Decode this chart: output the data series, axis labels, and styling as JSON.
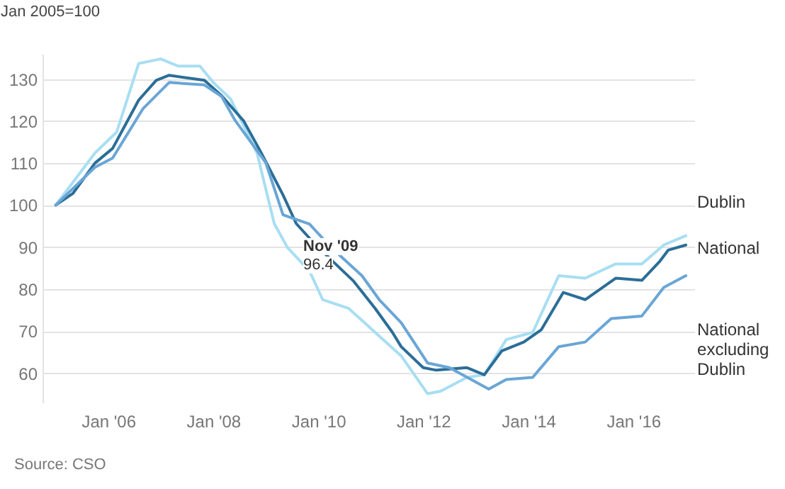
{
  "chart_data": {
    "type": "line",
    "ylabel": "Jan 2005=100",
    "xlim": [
      "2004-10",
      "2017-03"
    ],
    "ylim": [
      53,
      136
    ],
    "xticks": [
      {
        "value": "2006-01",
        "label": "Jan '06"
      },
      {
        "value": "2008-01",
        "label": "Jan '08"
      },
      {
        "value": "2010-01",
        "label": "Jan '10"
      },
      {
        "value": "2012-01",
        "label": "Jan '12"
      },
      {
        "value": "2014-01",
        "label": "Jan '14"
      },
      {
        "value": "2016-01",
        "label": "Jan '16"
      }
    ],
    "yticks": [
      60,
      70,
      80,
      90,
      100,
      110,
      120,
      130
    ],
    "grid": "y",
    "legend": false,
    "annotations": [
      "Nov '09",
      "96.4",
      "Source: CSO"
    ],
    "series": [
      {
        "name": "Dublin",
        "color": "#a8def2",
        "x": [
          "2005-01",
          "2005-10",
          "2006-03",
          "2006-08",
          "2007-01",
          "2007-05",
          "2007-10",
          "2008-01",
          "2008-05",
          "2008-11",
          "2009-03",
          "2009-06",
          "2009-11",
          "2010-02",
          "2010-08",
          "2011-02",
          "2011-08",
          "2012-02",
          "2012-05",
          "2012-11",
          "2013-03",
          "2013-08",
          "2014-02",
          "2014-08",
          "2015-02",
          "2015-09",
          "2016-03",
          "2016-08",
          "2017-01"
        ],
        "values": [
          100,
          112.4,
          117.4,
          133.7,
          134.8,
          133.1,
          133.1,
          129.2,
          125.3,
          112.4,
          95.6,
          89.9,
          84.3,
          77.5,
          75.4,
          69.7,
          64.1,
          55.1,
          55.7,
          59,
          59.6,
          68,
          69.7,
          83.2,
          82.6,
          86,
          86,
          90.5,
          92.7
        ]
      },
      {
        "name": "National",
        "color": "#2b6e97",
        "x": [
          "2005-01",
          "2005-05",
          "2005-10",
          "2006-02",
          "2006-08",
          "2006-12",
          "2007-03",
          "2007-11",
          "2008-03",
          "2008-08",
          "2008-12",
          "2009-05",
          "2009-08",
          "2009-12",
          "2010-05",
          "2010-09",
          "2011-02",
          "2011-06",
          "2011-08",
          "2012-01",
          "2012-04",
          "2012-11",
          "2013-03",
          "2013-07",
          "2013-12",
          "2014-04",
          "2014-09",
          "2015-02",
          "2015-09",
          "2016-03",
          "2016-07",
          "2016-09",
          "2017-01"
        ],
        "values": [
          100,
          102.8,
          110,
          113.5,
          125,
          129.7,
          130.9,
          129.7,
          126,
          120,
          112.4,
          102.4,
          95.6,
          91,
          86,
          82,
          75.4,
          69.7,
          66.3,
          61.3,
          60.7,
          61.3,
          59.6,
          65.3,
          67.4,
          70.3,
          79.2,
          77.5,
          82.6,
          82.1,
          86.5,
          89.3,
          90.5
        ]
      },
      {
        "name": "National excluding Dublin",
        "color": "#6aa6d6",
        "x": [
          "2005-01",
          "2005-10",
          "2006-02",
          "2006-09",
          "2007-03",
          "2007-11",
          "2008-03",
          "2008-06",
          "2009-01",
          "2009-05",
          "2009-11",
          "2010-04",
          "2010-11",
          "2011-03",
          "2011-08",
          "2012-02",
          "2012-07",
          "2013-04",
          "2013-08",
          "2014-02",
          "2014-08",
          "2015-02",
          "2015-08",
          "2016-03",
          "2016-08",
          "2017-01"
        ],
        "values": [
          100,
          109,
          111.2,
          123,
          129.2,
          128.6,
          125.8,
          120.2,
          110.1,
          97.7,
          95.5,
          89.9,
          83.2,
          77.5,
          72,
          62.4,
          61.3,
          56.2,
          58.5,
          59,
          66.3,
          67.4,
          73,
          73.6,
          80.4,
          83.2
        ]
      }
    ]
  }
}
